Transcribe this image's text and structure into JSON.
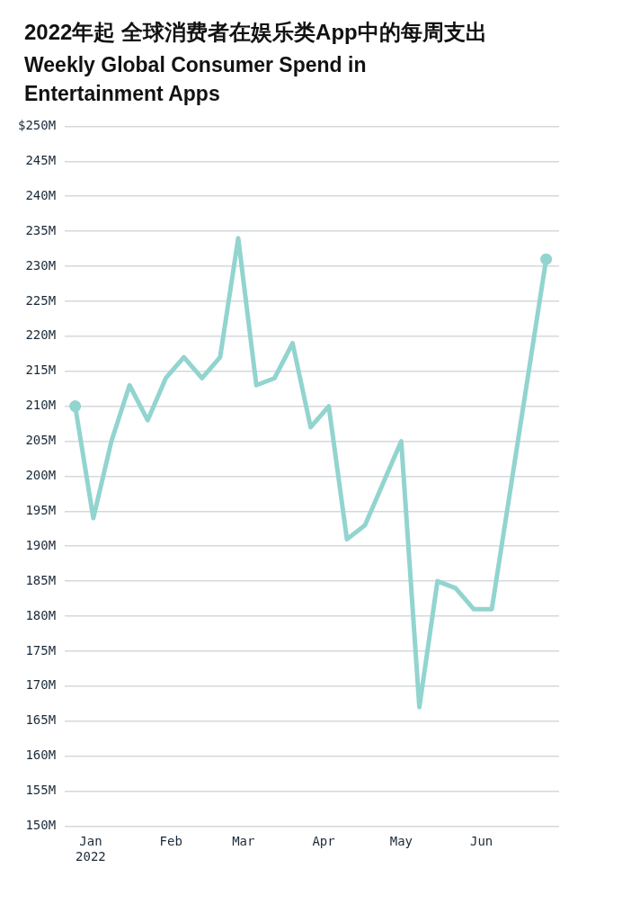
{
  "chart_data": {
    "type": "line",
    "title": "2022年起 全球消费者在娱乐类App中的每周支出",
    "subtitle": "Weekly Global Consumer Spend in Entertainment Apps",
    "x": [
      "2021-12-26",
      "2022-01-02",
      "2022-01-09",
      "2022-01-16",
      "2022-01-23",
      "2022-01-30",
      "2022-02-06",
      "2022-02-13",
      "2022-02-20",
      "2022-02-27",
      "2022-03-06",
      "2022-03-13",
      "2022-03-20",
      "2022-03-27",
      "2022-04-03",
      "2022-04-10",
      "2022-04-17",
      "2022-05-01",
      "2022-05-08",
      "2022-05-15",
      "2022-05-22",
      "2022-05-29",
      "2022-06-05",
      "2022-06-26"
    ],
    "series": [
      {
        "color": "#92d4cf",
        "values": [
          210,
          194,
          205,
          213,
          208,
          214,
          217,
          214,
          217,
          234,
          213,
          214,
          219,
          207,
          210,
          191,
          193,
          205,
          167,
          185,
          184,
          181,
          181,
          231
        ]
      }
    ],
    "xlim": [
      "2021-12-22",
      "2022-07-01"
    ],
    "xticks": [
      {
        "value": "2022-01-01",
        "label": "Jan\n2022"
      },
      {
        "value": "2022-02-01",
        "label": "Feb"
      },
      {
        "value": "2022-03-01",
        "label": "Mar"
      },
      {
        "value": "2022-04-01",
        "label": "Apr"
      },
      {
        "value": "2022-05-01",
        "label": "May"
      },
      {
        "value": "2022-06-01",
        "label": "Jun"
      }
    ],
    "ylim": [
      150,
      250
    ],
    "yticks": [
      {
        "value": 150,
        "label": "150M"
      },
      {
        "value": 155,
        "label": "155M"
      },
      {
        "value": 160,
        "label": "160M"
      },
      {
        "value": 165,
        "label": "165M"
      },
      {
        "value": 170,
        "label": "170M"
      },
      {
        "value": 175,
        "label": "175M"
      },
      {
        "value": 180,
        "label": "180M"
      },
      {
        "value": 185,
        "label": "185M"
      },
      {
        "value": 190,
        "label": "190M"
      },
      {
        "value": 195,
        "label": "195M"
      },
      {
        "value": 200,
        "label": "200M"
      },
      {
        "value": 205,
        "label": "205M"
      },
      {
        "value": 210,
        "label": "210M"
      },
      {
        "value": 215,
        "label": "215M"
      },
      {
        "value": 220,
        "label": "220M"
      },
      {
        "value": 225,
        "label": "225M"
      },
      {
        "value": 230,
        "label": "230M"
      },
      {
        "value": 235,
        "label": "235M"
      },
      {
        "value": 240,
        "label": "240M"
      },
      {
        "value": 245,
        "label": "245M"
      },
      {
        "value": 250,
        "label": "$250M"
      }
    ],
    "grid": "y",
    "legend": false,
    "line_style": "solid"
  }
}
